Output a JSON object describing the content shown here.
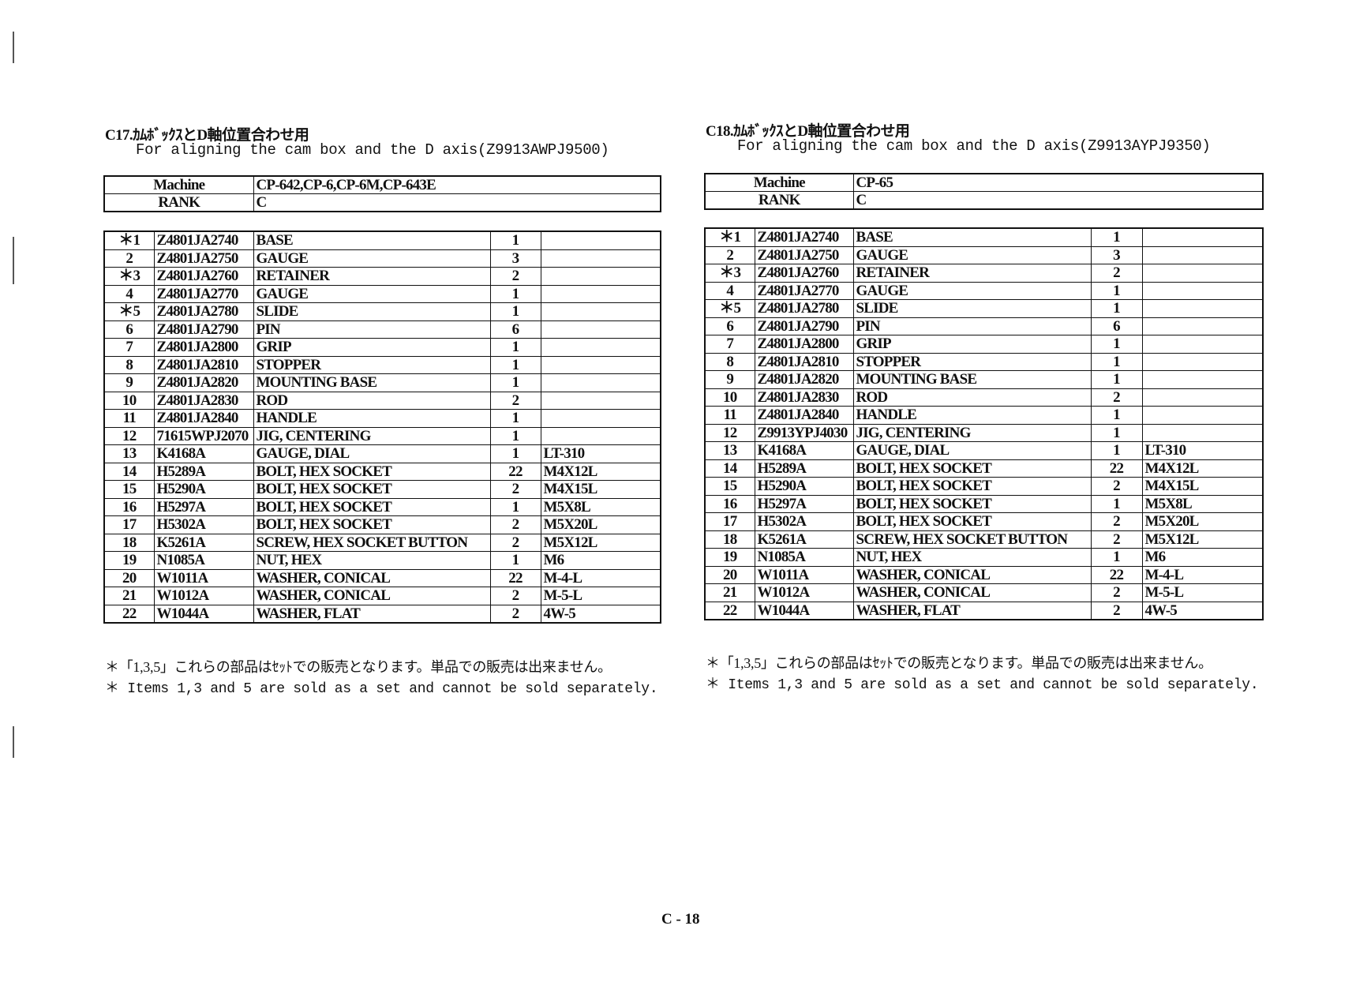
{
  "sections": [
    {
      "title": "C17.ｶﾑﾎﾞｯｸｽとD軸位置合わせ用",
      "subtitle": "For aligning the cam box and the D axis(Z9913AWPJ9500)",
      "machine_label": "Machine",
      "machine": "CP-642,CP-6,CP-6M,CP-643E",
      "rank_label": "RANK",
      "rank": "C",
      "parts": [
        {
          "no": "＊1",
          "code": "Z4801JA2740",
          "name": "BASE",
          "qty": "1",
          "spec": ""
        },
        {
          "no": "2",
          "code": "Z4801JA2750",
          "name": "GAUGE",
          "qty": "3",
          "spec": ""
        },
        {
          "no": "＊3",
          "code": "Z4801JA2760",
          "name": "RETAINER",
          "qty": "2",
          "spec": ""
        },
        {
          "no": "4",
          "code": "Z4801JA2770",
          "name": "GAUGE",
          "qty": "1",
          "spec": ""
        },
        {
          "no": "＊5",
          "code": "Z4801JA2780",
          "name": "SLIDE",
          "qty": "1",
          "spec": ""
        },
        {
          "no": "6",
          "code": "Z4801JA2790",
          "name": "PIN",
          "qty": "6",
          "spec": ""
        },
        {
          "no": "7",
          "code": "Z4801JA2800",
          "name": "GRIP",
          "qty": "1",
          "spec": ""
        },
        {
          "no": "8",
          "code": "Z4801JA2810",
          "name": "STOPPER",
          "qty": "1",
          "spec": ""
        },
        {
          "no": "9",
          "code": "Z4801JA2820",
          "name": "MOUNTING BASE",
          "qty": "1",
          "spec": ""
        },
        {
          "no": "10",
          "code": "Z4801JA2830",
          "name": "ROD",
          "qty": "2",
          "spec": ""
        },
        {
          "no": "11",
          "code": "Z4801JA2840",
          "name": "HANDLE",
          "qty": "1",
          "spec": ""
        },
        {
          "no": "12",
          "code": "71615WPJ2070",
          "name": "JIG, CENTERING",
          "qty": "1",
          "spec": ""
        },
        {
          "no": "13",
          "code": "K4168A",
          "name": "GAUGE, DIAL",
          "qty": "1",
          "spec": "LT-310"
        },
        {
          "no": "14",
          "code": "H5289A",
          "name": "BOLT, HEX SOCKET",
          "qty": "22",
          "spec": "M4X12L"
        },
        {
          "no": "15",
          "code": "H5290A",
          "name": "BOLT, HEX SOCKET",
          "qty": "2",
          "spec": "M4X15L"
        },
        {
          "no": "16",
          "code": "H5297A",
          "name": "BOLT, HEX SOCKET",
          "qty": "1",
          "spec": "M5X8L"
        },
        {
          "no": "17",
          "code": "H5302A",
          "name": "BOLT, HEX SOCKET",
          "qty": "2",
          "spec": "M5X20L"
        },
        {
          "no": "18",
          "code": "K5261A",
          "name": "SCREW, HEX SOCKET BUTTON",
          "qty": "2",
          "spec": "M5X12L"
        },
        {
          "no": "19",
          "code": "N1085A",
          "name": "NUT, HEX",
          "qty": "1",
          "spec": "M6"
        },
        {
          "no": "20",
          "code": "W1011A",
          "name": "WASHER, CONICAL",
          "qty": "22",
          "spec": "M-4-L"
        },
        {
          "no": "21",
          "code": "W1012A",
          "name": "WASHER, CONICAL",
          "qty": "2",
          "spec": "M-5-L"
        },
        {
          "no": "22",
          "code": "W1044A",
          "name": "WASHER, FLAT",
          "qty": "2",
          "spec": "4W-5"
        }
      ],
      "note_jp": "＊「1,3,5」これらの部品はｾｯﾄでの販売となります。単品での販売は出来ません。",
      "note_en": "＊ Items 1,3 and 5 are sold as a set and cannot be sold separately."
    },
    {
      "title": "C18.ｶﾑﾎﾞｯｸｽとD軸位置合わせ用",
      "subtitle": "For aligning the cam box and the D axis(Z9913AYPJ9350)",
      "machine_label": "Machine",
      "machine": "CP-65",
      "rank_label": "RANK",
      "rank": "C",
      "parts": [
        {
          "no": "＊1",
          "code": "Z4801JA2740",
          "name": "BASE",
          "qty": "1",
          "spec": ""
        },
        {
          "no": "2",
          "code": "Z4801JA2750",
          "name": "GAUGE",
          "qty": "3",
          "spec": ""
        },
        {
          "no": "＊3",
          "code": "Z4801JA2760",
          "name": "RETAINER",
          "qty": "2",
          "spec": ""
        },
        {
          "no": "4",
          "code": "Z4801JA2770",
          "name": "GAUGE",
          "qty": "1",
          "spec": ""
        },
        {
          "no": "＊5",
          "code": "Z4801JA2780",
          "name": "SLIDE",
          "qty": "1",
          "spec": ""
        },
        {
          "no": "6",
          "code": "Z4801JA2790",
          "name": "PIN",
          "qty": "6",
          "spec": ""
        },
        {
          "no": "7",
          "code": "Z4801JA2800",
          "name": "GRIP",
          "qty": "1",
          "spec": ""
        },
        {
          "no": "8",
          "code": "Z4801JA2810",
          "name": "STOPPER",
          "qty": "1",
          "spec": ""
        },
        {
          "no": "9",
          "code": "Z4801JA2820",
          "name": "MOUNTING BASE",
          "qty": "1",
          "spec": ""
        },
        {
          "no": "10",
          "code": "Z4801JA2830",
          "name": "ROD",
          "qty": "2",
          "spec": ""
        },
        {
          "no": "11",
          "code": "Z4801JA2840",
          "name": "HANDLE",
          "qty": "1",
          "spec": ""
        },
        {
          "no": "12",
          "code": "Z9913YPJ4030",
          "name": "JIG, CENTERING",
          "qty": "1",
          "spec": ""
        },
        {
          "no": "13",
          "code": "K4168A",
          "name": "GAUGE, DIAL",
          "qty": "1",
          "spec": "LT-310"
        },
        {
          "no": "14",
          "code": "H5289A",
          "name": "BOLT, HEX SOCKET",
          "qty": "22",
          "spec": "M4X12L"
        },
        {
          "no": "15",
          "code": "H5290A",
          "name": "BOLT, HEX SOCKET",
          "qty": "2",
          "spec": "M4X15L"
        },
        {
          "no": "16",
          "code": "H5297A",
          "name": "BOLT, HEX SOCKET",
          "qty": "1",
          "spec": "M5X8L"
        },
        {
          "no": "17",
          "code": "H5302A",
          "name": "BOLT, HEX SOCKET",
          "qty": "2",
          "spec": "M5X20L"
        },
        {
          "no": "18",
          "code": "K5261A",
          "name": "SCREW, HEX SOCKET BUTTON",
          "qty": "2",
          "spec": "M5X12L"
        },
        {
          "no": "19",
          "code": "N1085A",
          "name": "NUT, HEX",
          "qty": "1",
          "spec": "M6"
        },
        {
          "no": "20",
          "code": "W1011A",
          "name": "WASHER, CONICAL",
          "qty": "22",
          "spec": "M-4-L"
        },
        {
          "no": "21",
          "code": "W1012A",
          "name": "WASHER, CONICAL",
          "qty": "2",
          "spec": "M-5-L"
        },
        {
          "no": "22",
          "code": "W1044A",
          "name": "WASHER, FLAT",
          "qty": "2",
          "spec": "4W-5"
        }
      ],
      "note_jp": "＊「1,3,5」これらの部品はｾｯﾄでの販売となります。単品での販売は出来ません。",
      "note_en": "＊ Items 1,3 and 5 are sold as a set and cannot be sold separately."
    }
  ],
  "page_number": "C - 18"
}
